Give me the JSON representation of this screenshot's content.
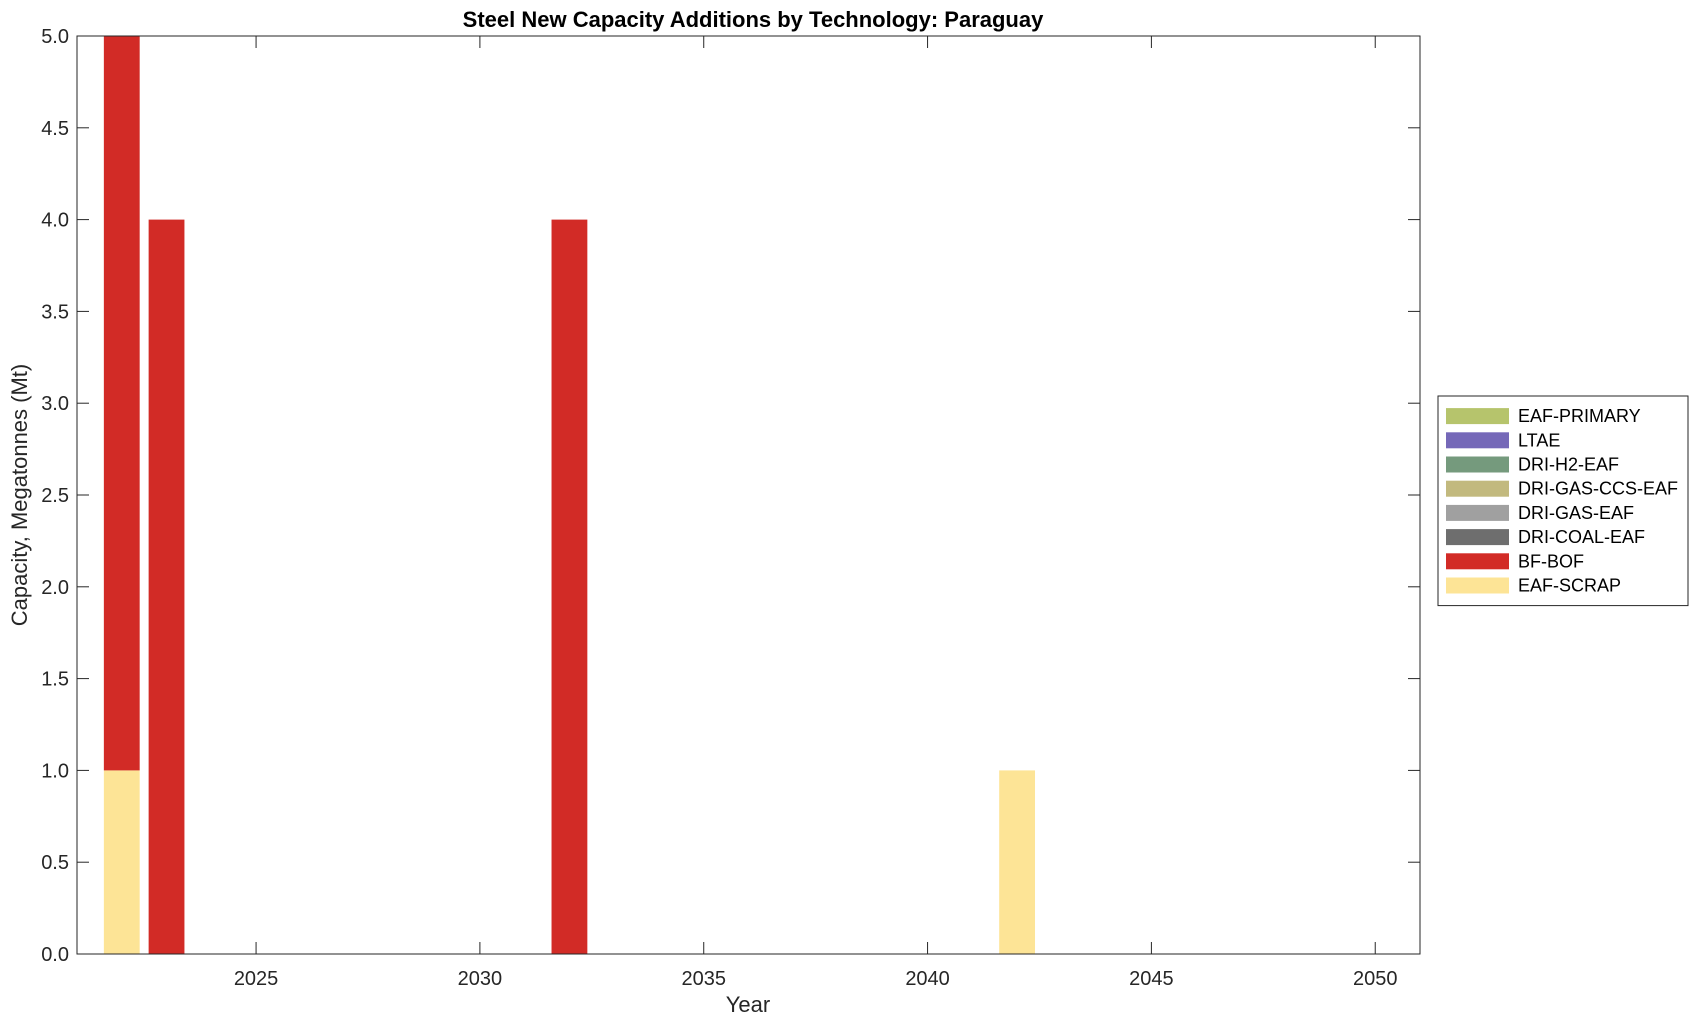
{
  "chart_data": {
    "type": "bar",
    "stacked": true,
    "title": "Steel New Capacity Additions by Technology: Paraguay",
    "xlabel": "Year",
    "ylabel": "Capacity, Megatonnes (Mt)",
    "xlim": [
      2021,
      2051
    ],
    "ylim": [
      0,
      5
    ],
    "x_ticks": [
      2025,
      2030,
      2035,
      2040,
      2045,
      2050
    ],
    "y_ticks": [
      0.0,
      0.5,
      1.0,
      1.5,
      2.0,
      2.5,
      3.0,
      3.5,
      4.0,
      4.5,
      5.0
    ],
    "y_tick_labels": [
      "0.0",
      "0.5",
      "1.0",
      "1.5",
      "2.0",
      "2.5",
      "3.0",
      "3.5",
      "4.0",
      "4.5",
      "5.0"
    ],
    "grid": false,
    "legend_position": "right",
    "x": [
      2022,
      2023,
      2032,
      2042
    ],
    "series": [
      {
        "name": "EAF-SCRAP",
        "color": "#FDE496",
        "values": [
          1,
          0,
          0,
          1
        ]
      },
      {
        "name": "BF-BOF",
        "color": "#D22B26",
        "values": [
          4,
          4,
          4,
          0
        ]
      },
      {
        "name": "DRI-COAL-EAF",
        "color": "#6E6E6E",
        "values": [
          0,
          0,
          0,
          0
        ]
      },
      {
        "name": "DRI-GAS-EAF",
        "color": "#A0A0A0",
        "values": [
          0,
          0,
          0,
          0
        ]
      },
      {
        "name": "DRI-GAS-CCS-EAF",
        "color": "#C2B97E",
        "values": [
          0,
          0,
          0,
          0
        ]
      },
      {
        "name": "DRI-H2-EAF",
        "color": "#759A7D",
        "values": [
          0,
          0,
          0,
          0
        ]
      },
      {
        "name": "LTAE",
        "color": "#7568B8",
        "values": [
          0,
          0,
          0,
          0
        ]
      },
      {
        "name": "EAF-PRIMARY",
        "color": "#B6C46C",
        "values": [
          0,
          0,
          0,
          0
        ]
      }
    ],
    "legend_order": [
      "EAF-PRIMARY",
      "LTAE",
      "DRI-H2-EAF",
      "DRI-GAS-CCS-EAF",
      "DRI-GAS-EAF",
      "DRI-COAL-EAF",
      "BF-BOF",
      "EAF-SCRAP"
    ]
  }
}
